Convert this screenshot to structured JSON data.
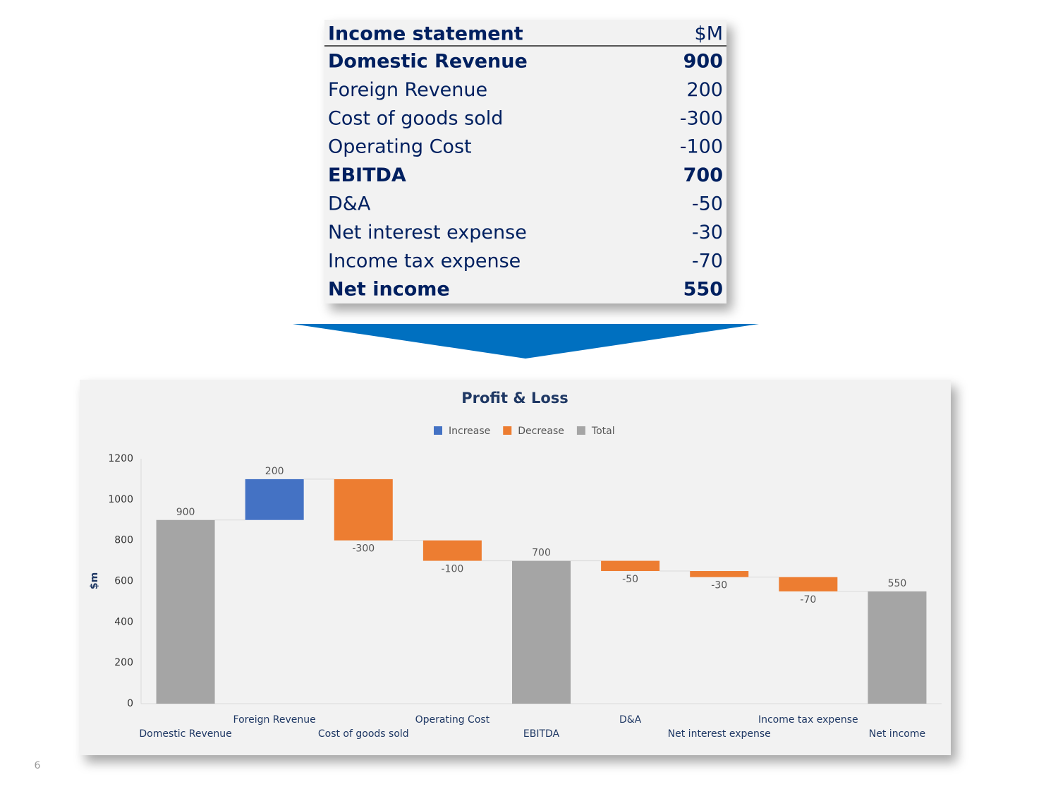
{
  "table": {
    "title": "Income statement",
    "unit": "$M",
    "rows": [
      {
        "label": "Domestic Revenue",
        "value": 900,
        "bold": true
      },
      {
        "label": "Foreign Revenue",
        "value": 200,
        "bold": false
      },
      {
        "label": "Cost of goods sold",
        "value": -300,
        "bold": false
      },
      {
        "label": "Operating Cost",
        "value": -100,
        "bold": false
      },
      {
        "label": "EBITDA",
        "value": 700,
        "bold": true
      },
      {
        "label": "D&A",
        "value": -50,
        "bold": false
      },
      {
        "label": "Net interest expense",
        "value": -30,
        "bold": false
      },
      {
        "label": "Income tax expense",
        "value": -70,
        "bold": false
      },
      {
        "label": "Net income",
        "value": 550,
        "bold": true
      }
    ]
  },
  "chart_data": {
    "type": "waterfall",
    "title": "Profit & Loss",
    "ylabel": "$m",
    "categories": [
      "Domestic Revenue",
      "Foreign Revenue",
      "Cost of goods sold",
      "Operating Cost",
      "EBITDA",
      "D&A",
      "Net interest expense",
      "Income tax expense",
      "Net income"
    ],
    "series": [
      {
        "name": "Increase",
        "color": "#4472c4",
        "values": [
          null,
          200,
          null,
          null,
          null,
          null,
          null,
          null,
          null
        ]
      },
      {
        "name": "Decrease",
        "color": "#ed7d31",
        "values": [
          null,
          null,
          -300,
          -100,
          null,
          -50,
          -30,
          -70,
          null
        ]
      },
      {
        "name": "Total",
        "color": "#a5a5a5",
        "values": [
          900,
          null,
          null,
          null,
          700,
          null,
          null,
          null,
          550
        ]
      }
    ],
    "ylim": [
      0,
      1200
    ],
    "yticks": [
      0,
      200,
      400,
      600,
      800,
      1000,
      1200
    ],
    "grid": false,
    "legend": "top"
  },
  "page_number": "6"
}
